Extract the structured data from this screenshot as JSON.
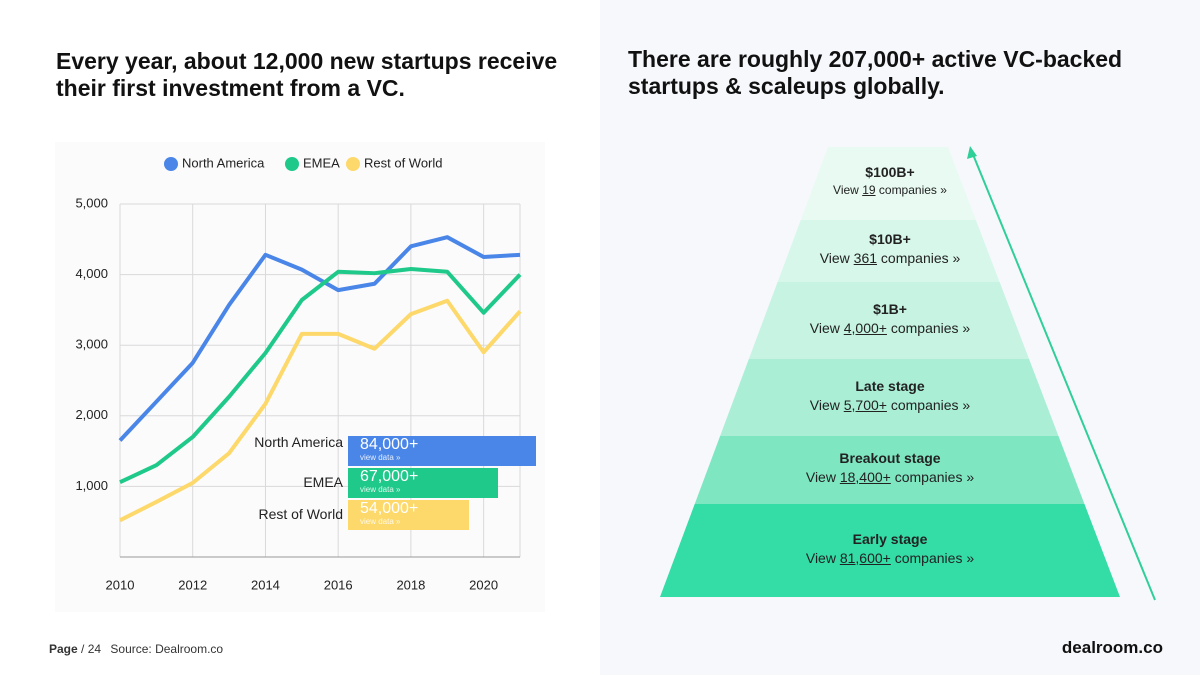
{
  "slide": {
    "left_title": "Every year, about 12,000 new startups receive their first investment from a VC.",
    "right_title": "There are roughly 207,000+ active VC-backed startups & scaleups globally.",
    "footer": {
      "page_word": "Page",
      "page_number": "/ 24",
      "source": "Source: Dealroom.co",
      "brand": "dealroom.co"
    }
  },
  "chart_data": {
    "type": "line",
    "x": [
      2010,
      2011,
      2012,
      2013,
      2014,
      2015,
      2016,
      2017,
      2018,
      2019,
      2020,
      2021
    ],
    "series": [
      {
        "name": "North America",
        "color": "#4a86e8",
        "values": [
          1650,
          2200,
          2750,
          3570,
          4280,
          4070,
          3780,
          3870,
          4400,
          4530,
          4250,
          4280
        ]
      },
      {
        "name": "EMEA",
        "color": "#1fc98a",
        "values": [
          1060,
          1300,
          1700,
          2270,
          2890,
          3640,
          4040,
          4020,
          4080,
          4040,
          3460,
          4000
        ]
      },
      {
        "name": "Rest of World",
        "color": "#fdd86a",
        "values": [
          520,
          780,
          1050,
          1470,
          2170,
          3160,
          3160,
          2950,
          3440,
          3630,
          2900,
          3480
        ]
      }
    ],
    "xlim": [
      2010,
      2021
    ],
    "xticks": [
      2010,
      2012,
      2014,
      2016,
      2018,
      2020
    ],
    "ylim": [
      0,
      5000
    ],
    "yticks": [
      {
        "value": 1000,
        "label": "1,000"
      },
      {
        "value": 2000,
        "label": "2,000"
      },
      {
        "value": 3000,
        "label": "3,000"
      },
      {
        "value": 4000,
        "label": "4,000"
      },
      {
        "value": 5000,
        "label": "5,000"
      }
    ],
    "grid": true,
    "legend": "top",
    "totals": {
      "categories": [
        "North America",
        "EMEA",
        "Rest of World"
      ],
      "values": [
        84000,
        67000,
        54000
      ],
      "value_labels": [
        "84,000+",
        "67,000+",
        "54,000+"
      ],
      "link_text": "view data »"
    }
  },
  "pyramid": {
    "levels": [
      {
        "title": "$100B+",
        "prefix": "View",
        "count": "19",
        "suffix": "companies »"
      },
      {
        "title": "$10B+",
        "prefix": "View",
        "count": "361",
        "suffix": "companies »"
      },
      {
        "title": "$1B+",
        "prefix": "View",
        "count": "4,000+",
        "suffix": "companies »"
      },
      {
        "title": "Late stage",
        "prefix": "View",
        "count": "5,700+",
        "suffix": "companies »"
      },
      {
        "title": "Breakout stage",
        "prefix": "View",
        "count": "18,400+",
        "suffix": "companies »"
      },
      {
        "title": "Early stage",
        "prefix": "View",
        "count": "81,600+",
        "suffix": "companies »"
      }
    ]
  }
}
